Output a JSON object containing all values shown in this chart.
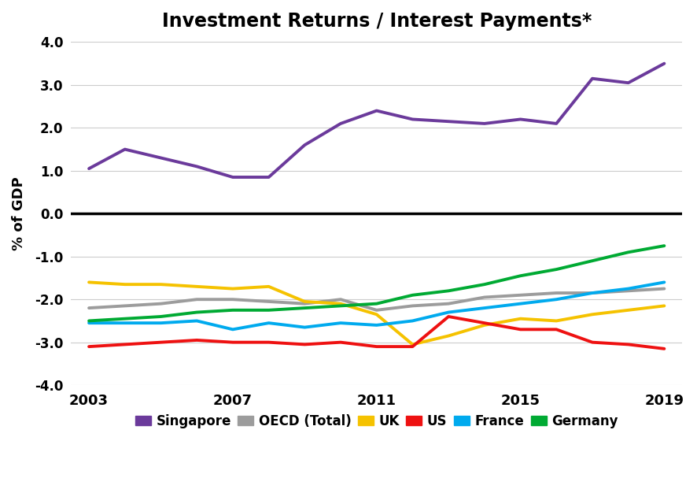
{
  "title": "Investment Returns / Interest Payments*",
  "ylabel": "% of GDP",
  "years": [
    2003,
    2004,
    2005,
    2006,
    2007,
    2008,
    2009,
    2010,
    2011,
    2012,
    2013,
    2014,
    2015,
    2016,
    2017,
    2018,
    2019
  ],
  "series": {
    "Singapore": [
      1.05,
      1.5,
      1.3,
      1.1,
      0.85,
      0.85,
      1.6,
      2.1,
      2.4,
      2.2,
      2.15,
      2.1,
      2.2,
      2.1,
      3.15,
      3.05,
      3.5
    ],
    "OECD (Total)": [
      -2.2,
      -2.15,
      -2.1,
      -2.0,
      -2.0,
      -2.05,
      -2.1,
      -2.0,
      -2.25,
      -2.15,
      -2.1,
      -1.95,
      -1.9,
      -1.85,
      -1.85,
      -1.8,
      -1.75
    ],
    "UK": [
      -1.6,
      -1.65,
      -1.65,
      -1.7,
      -1.75,
      -1.7,
      -2.05,
      -2.1,
      -2.35,
      -3.05,
      -2.85,
      -2.6,
      -2.45,
      -2.5,
      -2.35,
      -2.25,
      -2.15
    ],
    "US": [
      -3.1,
      -3.05,
      -3.0,
      -2.95,
      -3.0,
      -3.0,
      -3.05,
      -3.0,
      -3.1,
      -3.1,
      -2.4,
      -2.55,
      -2.7,
      -2.7,
      -3.0,
      -3.05,
      -3.15
    ],
    "France": [
      -2.55,
      -2.55,
      -2.55,
      -2.5,
      -2.7,
      -2.55,
      -2.65,
      -2.55,
      -2.6,
      -2.5,
      -2.3,
      -2.2,
      -2.1,
      -2.0,
      -1.85,
      -1.75,
      -1.6
    ],
    "Germany": [
      -2.5,
      -2.45,
      -2.4,
      -2.3,
      -2.25,
      -2.25,
      -2.2,
      -2.15,
      -2.1,
      -1.9,
      -1.8,
      -1.65,
      -1.45,
      -1.3,
      -1.1,
      -0.9,
      -0.75
    ]
  },
  "colors": {
    "Singapore": "#6B3A9B",
    "OECD (Total)": "#9C9C9C",
    "UK": "#F5C200",
    "US": "#EE1111",
    "France": "#00AAEE",
    "Germany": "#00AA33"
  },
  "xlim": [
    2002.5,
    2019.5
  ],
  "ylim": [
    -4.0,
    4.0
  ],
  "yticks": [
    -4.0,
    -3.0,
    -2.0,
    -1.0,
    0.0,
    1.0,
    2.0,
    3.0,
    4.0
  ],
  "xticks": [
    2003,
    2007,
    2011,
    2015,
    2019
  ],
  "linewidth": 2.8,
  "background_color": "#ffffff",
  "legend_order": [
    "Singapore",
    "OECD (Total)",
    "UK",
    "US",
    "France",
    "Germany"
  ]
}
